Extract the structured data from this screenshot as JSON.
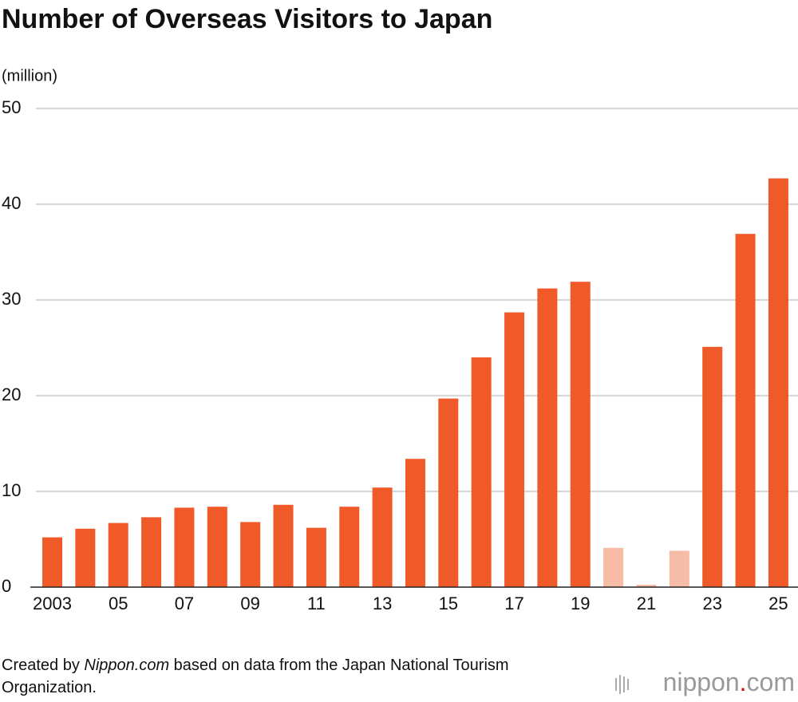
{
  "chart_data": {
    "type": "bar",
    "title": "Number of Overseas Visitors to Japan",
    "y_label": "(million)",
    "categories": [
      "2003",
      null,
      "05",
      null,
      "07",
      null,
      "09",
      null,
      "11",
      null,
      "13",
      null,
      "15",
      null,
      "17",
      null,
      "19",
      null,
      "21",
      null,
      "23",
      null,
      "25"
    ],
    "values": [
      5.2,
      6.1,
      6.7,
      7.3,
      8.3,
      8.4,
      6.8,
      8.6,
      6.2,
      8.4,
      10.4,
      13.4,
      19.7,
      24.0,
      28.7,
      31.2,
      31.9,
      4.1,
      0.25,
      3.8,
      25.1,
      36.9,
      42.7
    ],
    "colors": [
      "#f05a28",
      "#f05a28",
      "#f05a28",
      "#f05a28",
      "#f05a28",
      "#f05a28",
      "#f05a28",
      "#f05a28",
      "#f05a28",
      "#f05a28",
      "#f05a28",
      "#f05a28",
      "#f05a28",
      "#f05a28",
      "#f05a28",
      "#f05a28",
      "#f05a28",
      "#f7bca6",
      "#f7bca6",
      "#f7bca6",
      "#f05a28",
      "#f05a28",
      "#f05a28"
    ],
    "ylim": [
      0,
      50
    ],
    "yticks": [
      0,
      10,
      20,
      30,
      40,
      50
    ],
    "grid": true,
    "source": [
      "Created by ",
      "Nippon.com",
      " based on data from the Japan National Tourism Organization."
    ],
    "logo": [
      "nippon",
      ".",
      "com"
    ]
  }
}
